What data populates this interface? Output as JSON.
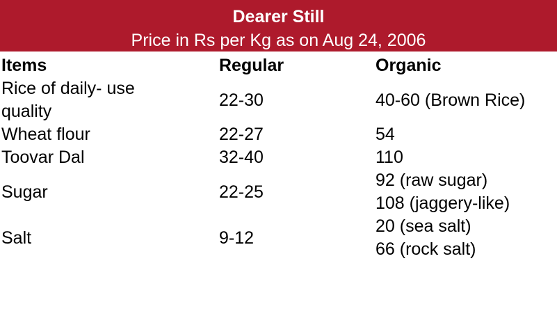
{
  "header": {
    "title": "Dearer Still",
    "subtitle": "Price in Rs per Kg as on Aug 24, 2006"
  },
  "table": {
    "columns": [
      "Items",
      "Regular",
      "Organic"
    ],
    "rows": [
      [
        "Rice of daily- use quality",
        "22-30",
        [
          "40-60 (Brown Rice)"
        ]
      ],
      [
        "Wheat flour",
        "22-27",
        [
          "54"
        ]
      ],
      [
        "Toovar Dal",
        "32-40",
        [
          "110"
        ]
      ],
      [
        "Sugar",
        "22-25",
        [
          "92 (raw sugar)",
          "108 (jaggery-like)"
        ]
      ],
      [
        "Salt",
        "9-12",
        [
          "20 (sea salt)",
          "66 (rock salt)"
        ]
      ]
    ]
  }
}
